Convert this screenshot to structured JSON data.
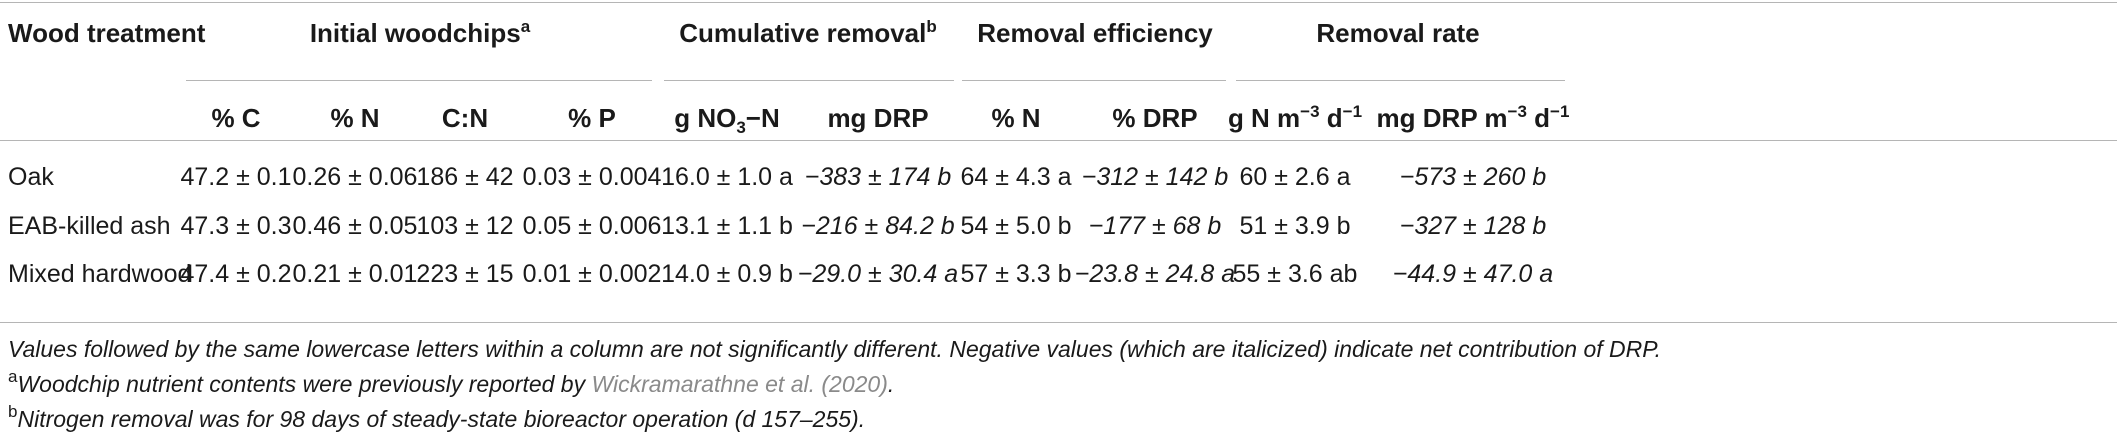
{
  "header": {
    "wood_treatment": "Wood treatment",
    "initial_woodchips": "Initial woodchips",
    "initial_woodchips_sup": "a",
    "cumulative_removal": "Cumulative removal",
    "cumulative_removal_sup": "b",
    "removal_efficiency": "Removal efficiency",
    "removal_rate": "Removal rate"
  },
  "subheader": {
    "pct_c": "% C",
    "pct_n": "% N",
    "cn": "C:N",
    "pct_p": "% P",
    "g_no3_n_pre": "g NO",
    "g_no3_n_sub": "3",
    "g_no3_n_post": "−N",
    "mg_drp": "mg DRP",
    "eff_pct_n": "% N",
    "eff_pct_drp": "% DRP",
    "rate_n_pre": "g N m",
    "rate_n_sup1": "−3",
    "rate_n_mid": " d",
    "rate_n_sup2": "−1",
    "rate_drp_pre": "mg DRP m",
    "rate_drp_sup1": "−3",
    "rate_drp_mid": " d",
    "rate_drp_sup2": "−1"
  },
  "rows": [
    {
      "name": "Oak",
      "c": "47.2 ± 0.1",
      "n": "0.26 ± 0.06",
      "cn": "186 ± 42",
      "p": "0.03 ± 0.004",
      "no3": "16.0 ± 1.0 a",
      "drp": "−383 ± 174 b",
      "eff_n": "64 ± 4.3 a",
      "eff_drp": "−312 ± 142 b",
      "rate_n": "60 ± 2.6 a",
      "rate_drp": "−573 ± 260 b"
    },
    {
      "name": "EAB-killed ash",
      "c": "47.3 ± 0.3",
      "n": "0.46 ± 0.05",
      "cn": "103 ± 12",
      "p": "0.05 ± 0.006",
      "no3": "13.1 ± 1.1 b",
      "drp": "−216 ± 84.2 b",
      "eff_n": "54 ± 5.0 b",
      "eff_drp": "−177 ± 68 b",
      "rate_n": "51 ± 3.9 b",
      "rate_drp": "−327 ± 128 b"
    },
    {
      "name": "Mixed hardwood",
      "c": "47.4 ± 0.2",
      "n": "0.21 ± 0.01",
      "cn": "223 ± 15",
      "p": "0.01 ± 0.002",
      "no3": "14.0 ± 0.9 b",
      "drp": "−29.0 ± 30.4 a",
      "eff_n": "57 ± 3.3 b",
      "eff_drp": "−23.8 ± 24.8 a",
      "rate_n": "55 ± 3.6 ab",
      "rate_drp": "−44.9 ± 47.0 a"
    }
  ],
  "notes": {
    "general": "Values followed by the same lowercase letters within a column are not significantly different. Negative values (which are italicized) indicate net contribution of DRP.",
    "a_mark": "a",
    "a_text_pre": "Woodchip nutrient contents were previously reported by ",
    "a_link": "Wickramarathne et al. (2020)",
    "a_text_post": ".",
    "b_mark": "b",
    "b_text": "Nitrogen removal was for 98 days of steady-state bioreactor operation (d 157–255)."
  }
}
